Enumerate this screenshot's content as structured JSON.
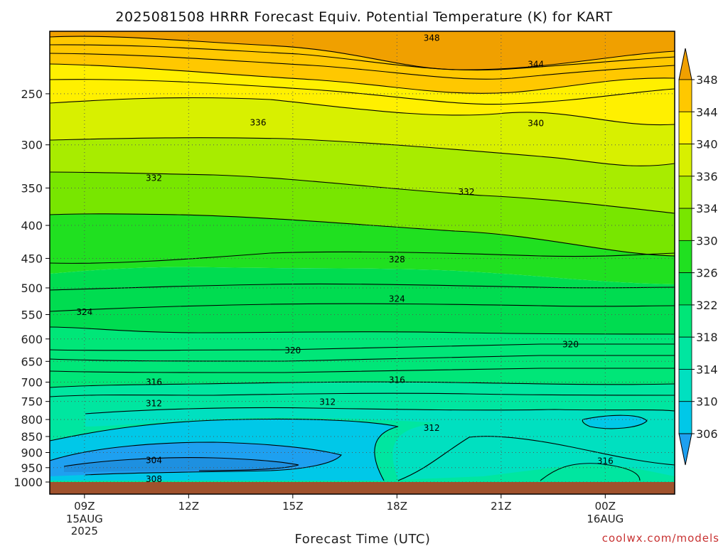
{
  "chart_data": {
    "type": "contour",
    "title": "2025081508 HRRR Forecast Equiv. Potential Temperature (K) for KART",
    "xlabel": "Forecast Time (UTC)",
    "ylabel": "",
    "credit": "coolwx.com/models",
    "y_axis": {
      "scale": "log",
      "unit": "hPa",
      "range": [
        1000,
        200
      ],
      "ticks": [
        250,
        300,
        350,
        400,
        450,
        500,
        550,
        600,
        650,
        700,
        750,
        800,
        850,
        900,
        950,
        1000
      ]
    },
    "x_axis": {
      "range_hours_utc": [
        "2025-08-15 08Z",
        "2025-08-16 02Z"
      ],
      "ticks": [
        {
          "label": "09Z",
          "sub": [
            "15AUG",
            "2025"
          ],
          "time": "2025-08-15 09Z"
        },
        {
          "label": "12Z",
          "sub": [],
          "time": "2025-08-15 12Z"
        },
        {
          "label": "15Z",
          "sub": [],
          "time": "2025-08-15 15Z"
        },
        {
          "label": "18Z",
          "sub": [],
          "time": "2025-08-15 18Z"
        },
        {
          "label": "21Z",
          "sub": [],
          "time": "2025-08-15 21Z"
        },
        {
          "label": "00Z",
          "sub": [
            "16AUG"
          ],
          "time": "2025-08-16 00Z"
        }
      ]
    },
    "grid": "dotted",
    "colorbar": {
      "ticks": [
        306,
        310,
        314,
        318,
        322,
        326,
        330,
        334,
        336,
        340,
        344,
        348
      ],
      "colors": [
        "#1ea0f0",
        "#00c8e8",
        "#00e0c0",
        "#00e6a0",
        "#00e678",
        "#00dc50",
        "#20e020",
        "#78e600",
        "#a8ec00",
        "#d8f000",
        "#fff000",
        "#ffc800",
        "#f0a000"
      ]
    },
    "contour_labels": [
      {
        "value": "348",
        "time": "2025-08-15 19Z",
        "pressure": 205
      },
      {
        "value": "344",
        "time": "2025-08-15 22Z",
        "pressure": 225
      },
      {
        "value": "340",
        "time": "2025-08-15 22Z",
        "pressure": 278
      },
      {
        "value": "336",
        "time": "2025-08-15 14Z",
        "pressure": 277
      },
      {
        "value": "332",
        "time": "2025-08-15 11Z",
        "pressure": 338
      },
      {
        "value": "332",
        "time": "2025-08-15 20Z",
        "pressure": 355
      },
      {
        "value": "328",
        "time": "2025-08-15 18Z",
        "pressure": 452
      },
      {
        "value": "324",
        "time": "2025-08-15 18Z",
        "pressure": 520
      },
      {
        "value": "324",
        "time": "2025-08-15 09Z",
        "pressure": 545
      },
      {
        "value": "320",
        "time": "2025-08-15 15Z",
        "pressure": 625
      },
      {
        "value": "320",
        "time": "2025-08-15 23Z",
        "pressure": 612
      },
      {
        "value": "316",
        "time": "2025-08-15 11Z",
        "pressure": 700
      },
      {
        "value": "316",
        "time": "2025-08-15 18Z",
        "pressure": 695
      },
      {
        "value": "316",
        "time": "2025-08-16 00Z",
        "pressure": 928
      },
      {
        "value": "312",
        "time": "2025-08-15 11Z",
        "pressure": 755
      },
      {
        "value": "312",
        "time": "2025-08-15 16Z",
        "pressure": 752
      },
      {
        "value": "312",
        "time": "2025-08-15 19Z",
        "pressure": 825
      },
      {
        "value": "304",
        "time": "2025-08-15 11Z",
        "pressure": 925
      },
      {
        "value": "308",
        "time": "2025-08-15 11Z",
        "pressure": 990
      }
    ]
  }
}
